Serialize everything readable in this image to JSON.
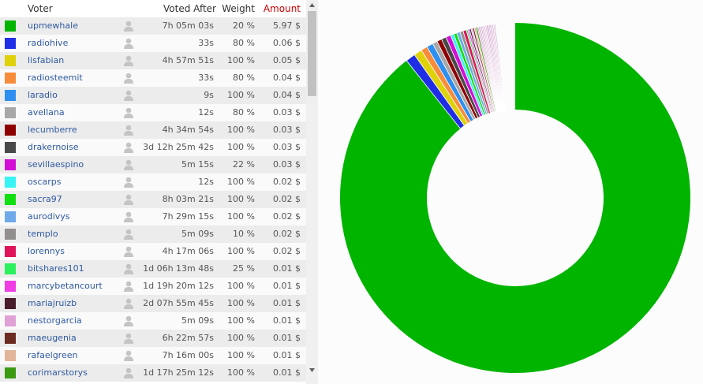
{
  "table": {
    "headers": {
      "voter": "Voter",
      "voted_after": "Voted After",
      "weight": "Weight",
      "amount": "Amount"
    },
    "rows": [
      {
        "voter": "upmewhale",
        "voted_after": "7h 05m 03s",
        "weight": "20 %",
        "amount": "5.97 $",
        "color": "#00b400"
      },
      {
        "voter": "radiohive",
        "voted_after": "33s",
        "weight": "80 %",
        "amount": "0.06 $",
        "color": "#1f2ee6"
      },
      {
        "voter": "lisfabian",
        "voted_after": "4h 57m 51s",
        "weight": "100 %",
        "amount": "0.05 $",
        "color": "#dfd10a"
      },
      {
        "voter": "radiosteemit",
        "voted_after": "33s",
        "weight": "80 %",
        "amount": "0.04 $",
        "color": "#f78c3a"
      },
      {
        "voter": "laradio",
        "voted_after": "9s",
        "weight": "100 %",
        "amount": "0.04 $",
        "color": "#2e8ff0"
      },
      {
        "voter": "avellana",
        "voted_after": "12s",
        "weight": "80 %",
        "amount": "0.03 $",
        "color": "#a7a7a7"
      },
      {
        "voter": "lecumberre",
        "voted_after": "4h 34m 54s",
        "weight": "100 %",
        "amount": "0.03 $",
        "color": "#8e0000"
      },
      {
        "voter": "drakernoise",
        "voted_after": "3d 12h 25m 42s",
        "weight": "100 %",
        "amount": "0.03 $",
        "color": "#494949"
      },
      {
        "voter": "sevillaespino",
        "voted_after": "5m 15s",
        "weight": "22 %",
        "amount": "0.03 $",
        "color": "#d30ed7"
      },
      {
        "voter": "oscarps",
        "voted_after": "12s",
        "weight": "100 %",
        "amount": "0.02 $",
        "color": "#38f4f4"
      },
      {
        "voter": "sacra97",
        "voted_after": "8h 03m 21s",
        "weight": "100 %",
        "amount": "0.02 $",
        "color": "#11df11"
      },
      {
        "voter": "aurodivys",
        "voted_after": "7h 29m 15s",
        "weight": "100 %",
        "amount": "0.02 $",
        "color": "#6eaaea"
      },
      {
        "voter": "templo",
        "voted_after": "5m 09s",
        "weight": "10 %",
        "amount": "0.02 $",
        "color": "#938f8f"
      },
      {
        "voter": "lorennys",
        "voted_after": "4h 17m 06s",
        "weight": "100 %",
        "amount": "0.02 $",
        "color": "#e0145a"
      },
      {
        "voter": "bitshares101",
        "voted_after": "1d 06h 13m 48s",
        "weight": "25 %",
        "amount": "0.01 $",
        "color": "#2cf05e"
      },
      {
        "voter": "marcybetancourt",
        "voted_after": "1d 19h 20m 12s",
        "weight": "100 %",
        "amount": "0.01 $",
        "color": "#f03ce4"
      },
      {
        "voter": "mariajruizb",
        "voted_after": "2d 07h 55m 45s",
        "weight": "100 %",
        "amount": "0.01 $",
        "color": "#4a1d2c"
      },
      {
        "voter": "nestorgarcia",
        "voted_after": "5m 09s",
        "weight": "100 %",
        "amount": "0.01 $",
        "color": "#e0a2d6"
      },
      {
        "voter": "maeugenia",
        "voted_after": "6h 22m 57s",
        "weight": "100 %",
        "amount": "0.01 $",
        "color": "#6b2b20"
      },
      {
        "voter": "rafaelgreen",
        "voted_after": "7h 16m 00s",
        "weight": "100 %",
        "amount": "0.01 $",
        "color": "#e2b49a"
      },
      {
        "voter": "corimarstorys",
        "voted_after": "1d 17h 25m 12s",
        "weight": "100 %",
        "amount": "0.01 $",
        "color": "#3a9a12"
      }
    ]
  },
  "chart_data": {
    "type": "pie",
    "categories": [
      "upmewhale",
      "radiohive",
      "lisfabian",
      "radiosteemit",
      "laradio",
      "avellana",
      "lecumberre",
      "drakernoise",
      "sevillaespino",
      "oscarps",
      "sacra97",
      "aurodivys",
      "templo",
      "lorennys",
      "bitshares101",
      "marcybetancourt",
      "mariajruizb",
      "nestorgarcia",
      "maeugenia",
      "rafaelgreen",
      "corimarstorys"
    ],
    "values": [
      5.97,
      0.06,
      0.05,
      0.04,
      0.04,
      0.03,
      0.03,
      0.03,
      0.03,
      0.02,
      0.02,
      0.02,
      0.02,
      0.02,
      0.01,
      0.01,
      0.01,
      0.01,
      0.01,
      0.01,
      0.01
    ],
    "colors": [
      "#00b400",
      "#1f2ee6",
      "#dfd10a",
      "#f78c3a",
      "#2e8ff0",
      "#a7a7a7",
      "#8e0000",
      "#494949",
      "#d30ed7",
      "#38f4f4",
      "#11df11",
      "#6eaaea",
      "#938f8f",
      "#e0145a",
      "#2cf05e",
      "#f03ce4",
      "#4a1d2c",
      "#e0a2d6",
      "#6b2b20",
      "#e2b49a",
      "#3a9a12"
    ],
    "trailing_small_votes": {
      "count": 16,
      "colors": [
        "#e36aa6",
        "#b28adc",
        "#d88fb6",
        "#a3a3c8",
        "#e39cc0",
        "#c9a0d8",
        "#f0a8c8",
        "#b9b9d6"
      ]
    }
  }
}
